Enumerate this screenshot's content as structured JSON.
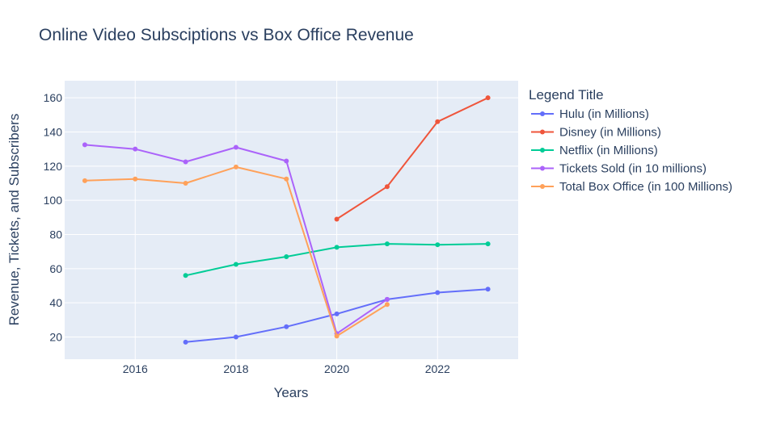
{
  "chart_data": {
    "type": "line",
    "title": "Online Video Subsciptions vs Box Office Revenue",
    "xlabel": "Years",
    "ylabel": "Revenue, Tickets, and Subscribers",
    "xlim": [
      2014.6,
      2023.6
    ],
    "ylim": [
      7,
      170
    ],
    "xticks": [
      2016,
      2018,
      2020,
      2022
    ],
    "yticks": [
      20,
      40,
      60,
      80,
      100,
      120,
      140,
      160
    ],
    "grid": true,
    "legend_position": "right",
    "legend_title": "Legend Title",
    "series": [
      {
        "name": "Hulu (in Millions)",
        "color": "#636efa",
        "x": [
          2017,
          2018,
          2019,
          2020,
          2021,
          2022,
          2023
        ],
        "values": [
          17,
          20,
          26,
          33.5,
          42,
          46,
          48
        ]
      },
      {
        "name": "Disney (in Millions)",
        "color": "#ef553b",
        "x": [
          2020,
          2021,
          2022,
          2023
        ],
        "values": [
          89,
          108,
          146,
          160
        ]
      },
      {
        "name": "Netflix (in Millions)",
        "color": "#00cc96",
        "x": [
          2017,
          2018,
          2019,
          2020,
          2021,
          2022,
          2023
        ],
        "values": [
          56,
          62.5,
          67,
          72.5,
          74.5,
          74,
          74.5
        ]
      },
      {
        "name": "Tickets Sold (in 10 millions)",
        "color": "#ab63fa",
        "x": [
          2015,
          2016,
          2017,
          2018,
          2019,
          2020,
          2021
        ],
        "values": [
          132.5,
          130,
          122.5,
          131,
          123,
          22,
          42
        ]
      },
      {
        "name": "Total Box Office (in 100 Millions)",
        "color": "#ffa15a",
        "x": [
          2015,
          2016,
          2017,
          2018,
          2019,
          2020,
          2021
        ],
        "values": [
          111.5,
          112.5,
          110,
          119.5,
          112.5,
          20.5,
          39
        ]
      }
    ]
  }
}
